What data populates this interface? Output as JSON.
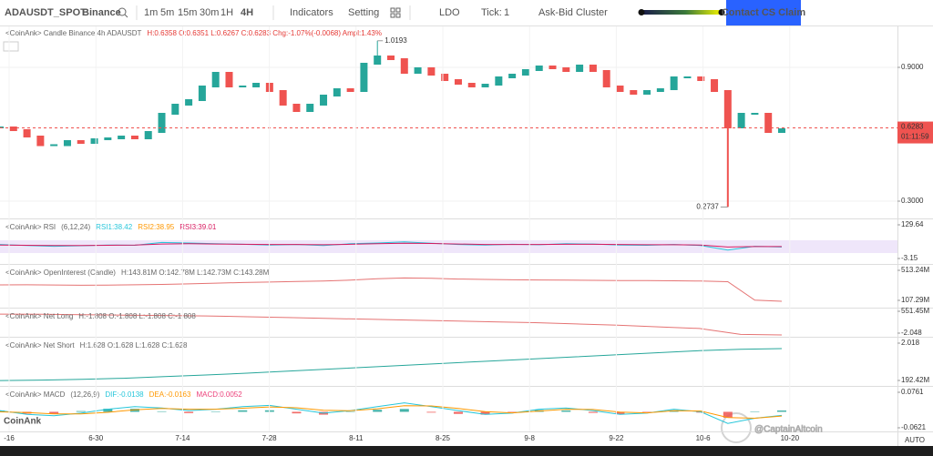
{
  "toolbar": {
    "symbol": "ADAUSDT_SPOT",
    "exchange": "Binance",
    "intervals": [
      "1m",
      "5m",
      "15m",
      "30m",
      "1H",
      "4H"
    ],
    "active_interval": "4H",
    "indicators": "Indicators",
    "setting": "Setting",
    "ldo": "LDO",
    "tick_label": "Tick:",
    "tick_value": "1",
    "cluster": "Ask-Bid Cluster",
    "button": "Contact CS Claim"
  },
  "price": {
    "legend_name": "<CoinAnk> Candle  Binance 4h ADAUSDT",
    "legend_stats": "H:0.6358  O:0.6351  L:0.6267  C:0.6283  Chg:-1.07%(-0.0068)  Ampl:1.43%",
    "ylim": [
      0.2224,
      1.0796
    ],
    "ticks": [
      {
        "value": 0.9,
        "label": "0.9000"
      },
      {
        "value": 0.3,
        "label": "0.3000"
      }
    ],
    "up_color": "#26a69a",
    "down_color": "#ef5350",
    "values": [
      0.6306,
      0.6184,
      0.5898,
      0.551,
      0.551,
      0.5694,
      0.5612,
      0.5776,
      0.5816,
      0.5898,
      0.5816,
      0.6102,
      0.6918,
      0.7327,
      0.7531,
      0.8143,
      0.8755,
      0.8143,
      0.8143,
      0.8265,
      0.7939,
      0.7327,
      0.7041,
      0.7327,
      0.7735,
      0.802,
      0.7939,
      0.9163,
      0.949,
      0.9367,
      0.8755,
      0.8959,
      0.8673,
      0.8429,
      0.8265,
      0.8143,
      0.8224,
      0.8551,
      0.8673,
      0.8878,
      0.9041,
      0.8959,
      0.8837,
      0.9082,
      0.8837,
      0.8143,
      0.7939,
      0.7816,
      0.7939,
      0.802,
      0.8551,
      0.8551,
      0.8429,
      0.7939,
      0.6306,
      0.6918,
      0.6918,
      0.6102,
      0.6224
    ],
    "high": {
      "value": 1.0193,
      "label": "1.0193"
    },
    "low": {
      "value": 0.2737,
      "label": "0.2737"
    },
    "last": {
      "value": 0.6283,
      "label": "0.6283",
      "countdown": "01:11:59"
    }
  },
  "panels": [
    {
      "name": "<CoinAnk> RSI",
      "params": "(6,12,24)",
      "stats": [
        {
          "text": "RSI1:38.42",
          "color": "#26c6da"
        },
        {
          "text": "RSI2:38.95",
          "color": "#ff9800"
        },
        {
          "text": "RSI3:39.01",
          "color": "#d81b60"
        }
      ],
      "ylim": [
        -24.7,
        147.6
      ],
      "ticks": [
        129.64,
        -3.15
      ],
      "series": [
        {
          "color": "#26c6da",
          "values": [
            52,
            48,
            45,
            47,
            50,
            49,
            60,
            58,
            55,
            53,
            50,
            52,
            48,
            55,
            58,
            62,
            57,
            52,
            50,
            53,
            51,
            55,
            54,
            50,
            49,
            52,
            48,
            30,
            45,
            42
          ]
        },
        {
          "color": "#d81b60",
          "values": [
            50,
            49,
            48,
            48,
            49,
            50,
            54,
            55,
            54,
            53,
            52,
            52,
            51,
            53,
            55,
            57,
            56,
            54,
            52,
            52,
            52,
            53,
            53,
            52,
            51,
            51,
            50,
            42,
            44,
            44
          ]
        }
      ]
    },
    {
      "name": "<CoinAnk> OpenInterest (Candle)",
      "params": "",
      "stats": [
        {
          "text": "H:143.81M  O:142.78M  L:142.73M  C:143.28M",
          "color": "#666666"
        }
      ],
      "ylim": [
        8.9,
        574.7
      ],
      "ticks": [
        {
          "value": 513.24,
          "label": "513.24M"
        },
        {
          "value": 107.29,
          "label": "107.29M"
        }
      ],
      "series": [
        {
          "color": "#e57373",
          "values": [
            316,
            318,
            315,
            312,
            314,
            318,
            322,
            330,
            340,
            348,
            355,
            362,
            368,
            380,
            400,
            410,
            405,
            395,
            390,
            385,
            383,
            380,
            378,
            376,
            374,
            372,
            368,
            360,
            110,
            95
          ]
        }
      ]
    },
    {
      "name": "<CoinAnk> Net Long",
      "params": "",
      "stats": [
        {
          "text": "H:-1.808  O:-1.808  L:-1.808  C:-1.808",
          "color": "#666666"
        }
      ],
      "ylim": [
        -2.481,
        0.768
      ],
      "ticks": [
        {
          "value": 0.55145,
          "label": "551.45M"
        },
        -2.048
      ],
      "series": [
        {
          "color": "#e57373",
          "values": [
            0.22,
            0.2,
            0.15,
            0.1,
            0.05,
            0,
            -0.1,
            -0.2,
            -0.3,
            -0.4,
            -0.5,
            -0.6,
            -0.7,
            -0.8,
            -0.95,
            -1.1,
            -1.3,
            -1.5,
            -2.2,
            -2.26
          ]
        }
      ]
    },
    {
      "name": "<CoinAnk> Net Short",
      "params": "",
      "stats": [
        {
          "text": "H:1.628  O:1.628  L:1.628  C:1.628",
          "color": "#666666"
        }
      ],
      "ylim": [
        -0.0748,
        2.2406
      ],
      "ticks": [
        2.018,
        {
          "value": 0.19242,
          "label": "192.42M"
        }
      ],
      "series": [
        {
          "color": "#26a69a",
          "values": [
            0.19,
            0.21,
            0.25,
            0.3,
            0.38,
            0.46,
            0.55,
            0.65,
            0.75,
            0.85,
            0.95,
            1.05,
            1.15,
            1.25,
            1.35,
            1.45,
            1.55,
            1.65,
            1.72,
            1.75
          ]
        }
      ]
    },
    {
      "name": "<CoinAnk> MACD",
      "params": "(12,26,9)",
      "stats": [
        {
          "text": "DIF:-0.0138",
          "color": "#26c6da"
        },
        {
          "text": "DEA:-0.0163",
          "color": "#ff9800"
        },
        {
          "text": "MACD:0.0052",
          "color": "#ec407a"
        }
      ],
      "ylim": [
        -0.0763,
        0.0938
      ],
      "ticks": [
        0.0761,
        -0.0621
      ],
      "series": [
        {
          "color": "#26c6da",
          "values": [
            0.005,
            -0.01,
            -0.015,
            -0.005,
            0.01,
            0.02,
            0.015,
            0.005,
            0.01,
            0.02,
            0.025,
            0.01,
            -0.005,
            0.005,
            0.02,
            0.035,
            0.02,
            0.005,
            -0.01,
            -0.005,
            0.01,
            0.015,
            0.005,
            -0.01,
            -0.005,
            0.01,
            0.0,
            -0.045,
            -0.025,
            -0.0138
          ]
        },
        {
          "color": "#ff9800",
          "values": [
            0.0,
            -0.003,
            -0.008,
            -0.008,
            -0.002,
            0.008,
            0.013,
            0.01,
            0.01,
            0.014,
            0.019,
            0.016,
            0.006,
            0.004,
            0.012,
            0.024,
            0.023,
            0.013,
            0.001,
            -0.004,
            0.003,
            0.01,
            0.009,
            -0.001,
            -0.004,
            0.004,
            0.003,
            -0.022,
            -0.025,
            -0.0163
          ]
        }
      ],
      "hist": {
        "values": [
          0.005,
          -0.007,
          -0.007,
          0.003,
          0.012,
          0.012,
          0.002,
          -0.005,
          0,
          0.006,
          0.006,
          -0.006,
          -0.011,
          0.001,
          0.008,
          0.011,
          -0.003,
          -0.008,
          -0.011,
          -0.001,
          0.007,
          0.005,
          -0.004,
          -0.009,
          -0.001,
          0.006,
          -0.003,
          -0.023,
          0,
          0.0052
        ],
        "up_color": "#26a69a",
        "down_color": "#ef5350"
      }
    }
  ],
  "x_labels": [
    "-16",
    "6-30",
    "7-14",
    "7-28",
    "8-11",
    "8-25",
    "9-8",
    "9-22",
    "10-6",
    "10-20"
  ],
  "auto": "AUTO",
  "watermark": "CoinAnk",
  "credit": "@CaptainAltcoin"
}
